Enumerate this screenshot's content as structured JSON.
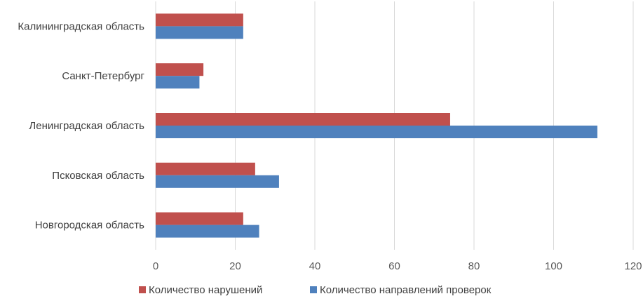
{
  "chart_data": {
    "type": "bar",
    "orientation": "horizontal",
    "title": "",
    "xlabel": "",
    "ylabel": "",
    "categories": [
      "Калининградская область",
      "Санкт-Петербург",
      "Ленинградская область",
      "Псковская область",
      "Новгородская область"
    ],
    "series": [
      {
        "name": "Количество нарушений",
        "color": "#C0504D",
        "values": [
          22,
          12,
          74,
          25,
          22
        ]
      },
      {
        "name": "Количество направлений проверок",
        "color": "#4F81BD",
        "values": [
          22,
          11,
          111,
          31,
          26
        ]
      }
    ],
    "xlim": [
      0,
      120
    ],
    "xticks": [
      "0",
      "20",
      "40",
      "60",
      "80",
      "100",
      "120"
    ],
    "grid": true,
    "legend_position": "bottom"
  }
}
